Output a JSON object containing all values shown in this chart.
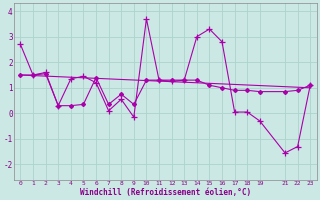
{
  "xlabel": "Windchill (Refroidissement éolien,°C)",
  "background_color": "#cce8e4",
  "grid_color": "#aad4cc",
  "line_color": "#aa00aa",
  "x_ticks": [
    0,
    1,
    2,
    3,
    4,
    5,
    6,
    7,
    8,
    9,
    10,
    11,
    12,
    13,
    14,
    15,
    16,
    17,
    18,
    19,
    21,
    22,
    23
  ],
  "ylim": [
    -2.6,
    4.3
  ],
  "xlim": [
    -0.5,
    23.5
  ],
  "series1": {
    "x": [
      0,
      1,
      2,
      3,
      4,
      5,
      6,
      7,
      8,
      9,
      10,
      11,
      12,
      13,
      14,
      15,
      16,
      17,
      18,
      19,
      21,
      22,
      23
    ],
    "y": [
      2.7,
      1.5,
      1.6,
      0.3,
      1.35,
      1.45,
      1.2,
      0.1,
      0.55,
      -0.15,
      3.7,
      1.3,
      1.25,
      1.3,
      3.0,
      3.3,
      2.8,
      0.05,
      0.05,
      -0.3,
      -1.55,
      -1.3,
      1.1
    ]
  },
  "series2": {
    "x": [
      0,
      1,
      2,
      3,
      4,
      5,
      6,
      7,
      8,
      9,
      10,
      11,
      12,
      13,
      14,
      15,
      16,
      17,
      18,
      19,
      21,
      22,
      23
    ],
    "y": [
      1.5,
      1.5,
      1.55,
      0.3,
      0.3,
      0.35,
      1.4,
      0.35,
      0.75,
      0.35,
      1.3,
      1.3,
      1.3,
      1.3,
      1.3,
      1.1,
      1.0,
      0.9,
      0.9,
      0.85,
      0.85,
      0.9,
      1.1
    ]
  },
  "series3": {
    "x": [
      0,
      23
    ],
    "y": [
      1.5,
      1.0
    ]
  },
  "yticks": [
    -2,
    -1,
    0,
    1,
    2,
    3,
    4
  ]
}
